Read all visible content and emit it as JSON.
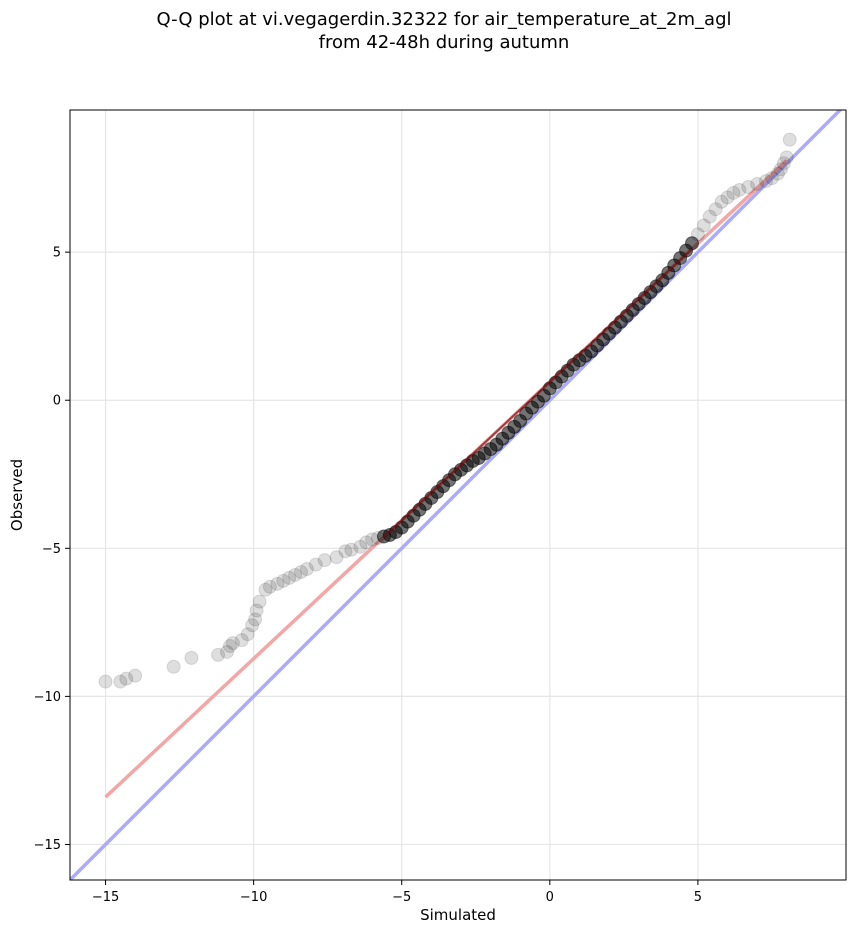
{
  "chart_data": {
    "type": "scatter",
    "title_lines": [
      "Q-Q plot at vi.vegagerdin.32322 for air_temperature_at_2m_agl",
      "from 42-48h during autumn"
    ],
    "xlabel": "Simulated",
    "ylabel": "Observed",
    "xlim": [
      -16.2,
      10.0
    ],
    "ylim": [
      -16.2,
      9.8
    ],
    "xticks": [
      -15,
      -10,
      -5,
      0,
      5
    ],
    "yticks": [
      -15,
      -10,
      -5,
      0,
      5
    ],
    "xtick_labels": [
      "−15",
      "−10",
      "−5",
      "0",
      "5"
    ],
    "ytick_labels": [
      "−15",
      "−10",
      "−5",
      "0",
      "5"
    ],
    "grid": true,
    "lines": [
      {
        "role": "identity",
        "color": "#aaaaff",
        "x": [
          -16.2,
          10.0
        ],
        "y": [
          -16.2,
          10.0
        ]
      },
      {
        "role": "fit",
        "color": "#f4a6a6",
        "x": [
          -15.0,
          8.0
        ],
        "y": [
          -13.4,
          8.1
        ]
      }
    ],
    "points": {
      "color": "#000000",
      "x": [
        -15.0,
        -14.5,
        -14.3,
        -14.0,
        -12.7,
        -12.1,
        -11.2,
        -10.9,
        -10.8,
        -10.7,
        -10.4,
        -10.2,
        -10.05,
        -9.95,
        -9.9,
        -9.8,
        -9.6,
        -9.45,
        -9.2,
        -9.0,
        -8.8,
        -8.6,
        -8.4,
        -8.2,
        -7.9,
        -7.6,
        -7.2,
        -6.9,
        -6.7,
        -6.4,
        -6.2,
        -6.0,
        -5.8,
        -5.6,
        -5.4,
        -5.2,
        -5.0,
        -4.8,
        -4.6,
        -4.4,
        -4.2,
        -4.0,
        -3.8,
        -3.6,
        -3.4,
        -3.2,
        -3.0,
        -2.8,
        -2.6,
        -2.4,
        -2.2,
        -2.0,
        -1.8,
        -1.6,
        -1.4,
        -1.2,
        -1.0,
        -0.8,
        -0.6,
        -0.4,
        -0.2,
        0.0,
        0.2,
        0.4,
        0.6,
        0.8,
        1.0,
        1.2,
        1.4,
        1.6,
        1.8,
        2.0,
        2.2,
        2.4,
        2.6,
        2.8,
        3.0,
        3.2,
        3.4,
        3.6,
        3.8,
        4.0,
        4.2,
        4.4,
        4.6,
        4.8,
        5.0,
        5.2,
        5.4,
        5.6,
        5.8,
        6.0,
        6.2,
        6.4,
        6.7,
        7.0,
        7.3,
        7.5,
        7.7,
        7.8,
        7.9,
        8.0,
        8.1
      ],
      "y": [
        -9.5,
        -9.5,
        -9.4,
        -9.3,
        -9.0,
        -8.7,
        -8.6,
        -8.5,
        -8.3,
        -8.2,
        -8.1,
        -7.9,
        -7.6,
        -7.4,
        -7.1,
        -6.8,
        -6.4,
        -6.3,
        -6.2,
        -6.1,
        -6.0,
        -5.9,
        -5.8,
        -5.7,
        -5.55,
        -5.4,
        -5.3,
        -5.1,
        -5.05,
        -4.95,
        -4.8,
        -4.7,
        -4.65,
        -4.6,
        -4.55,
        -4.45,
        -4.3,
        -4.1,
        -3.9,
        -3.7,
        -3.5,
        -3.3,
        -3.1,
        -2.9,
        -2.7,
        -2.5,
        -2.35,
        -2.2,
        -2.05,
        -1.95,
        -1.8,
        -1.65,
        -1.5,
        -1.3,
        -1.1,
        -0.9,
        -0.7,
        -0.45,
        -0.25,
        -0.05,
        0.15,
        0.4,
        0.6,
        0.8,
        1.0,
        1.2,
        1.35,
        1.5,
        1.65,
        1.85,
        2.05,
        2.25,
        2.45,
        2.65,
        2.85,
        3.05,
        3.25,
        3.45,
        3.65,
        3.85,
        4.05,
        4.3,
        4.55,
        4.8,
        5.05,
        5.3,
        5.6,
        5.9,
        6.2,
        6.45,
        6.7,
        6.85,
        7.0,
        7.1,
        7.2,
        7.3,
        7.4,
        7.5,
        7.65,
        7.8,
        8.0,
        8.2,
        8.8
      ]
    }
  }
}
